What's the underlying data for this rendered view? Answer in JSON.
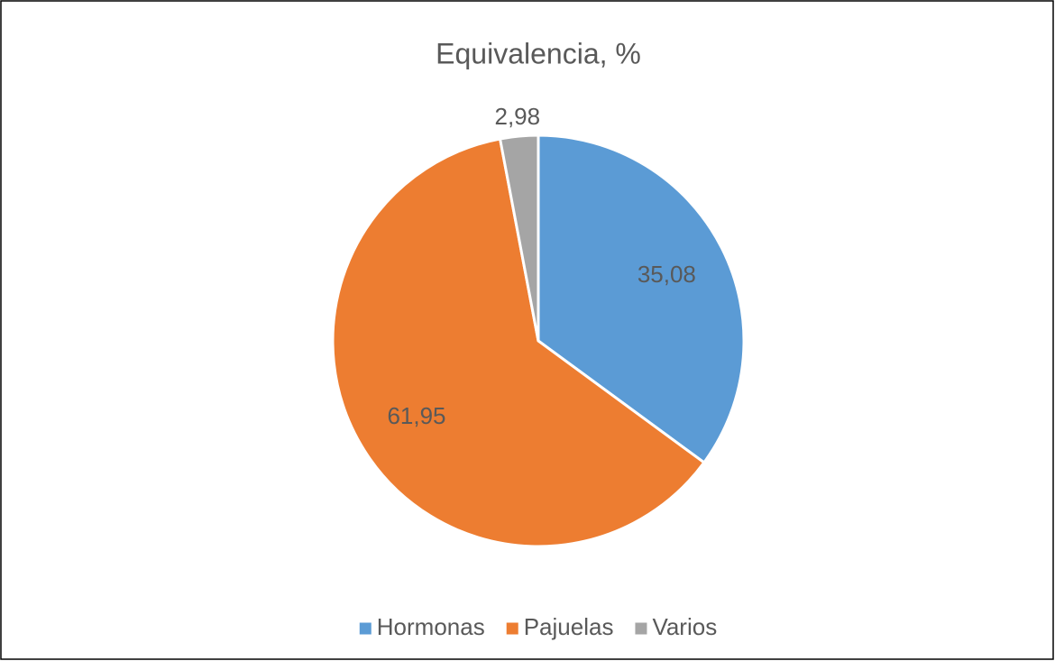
{
  "chart_data": {
    "type": "pie",
    "title": "Equivalencia, %",
    "categories": [
      "Hormonas",
      "Pajuelas",
      "Varios"
    ],
    "values": [
      35.08,
      61.95,
      2.98
    ],
    "value_labels": [
      "35,08",
      "61,95",
      "2,98"
    ],
    "colors": [
      "#5b9bd5",
      "#ed7d31",
      "#a5a5a5"
    ],
    "legend": "bottom"
  }
}
